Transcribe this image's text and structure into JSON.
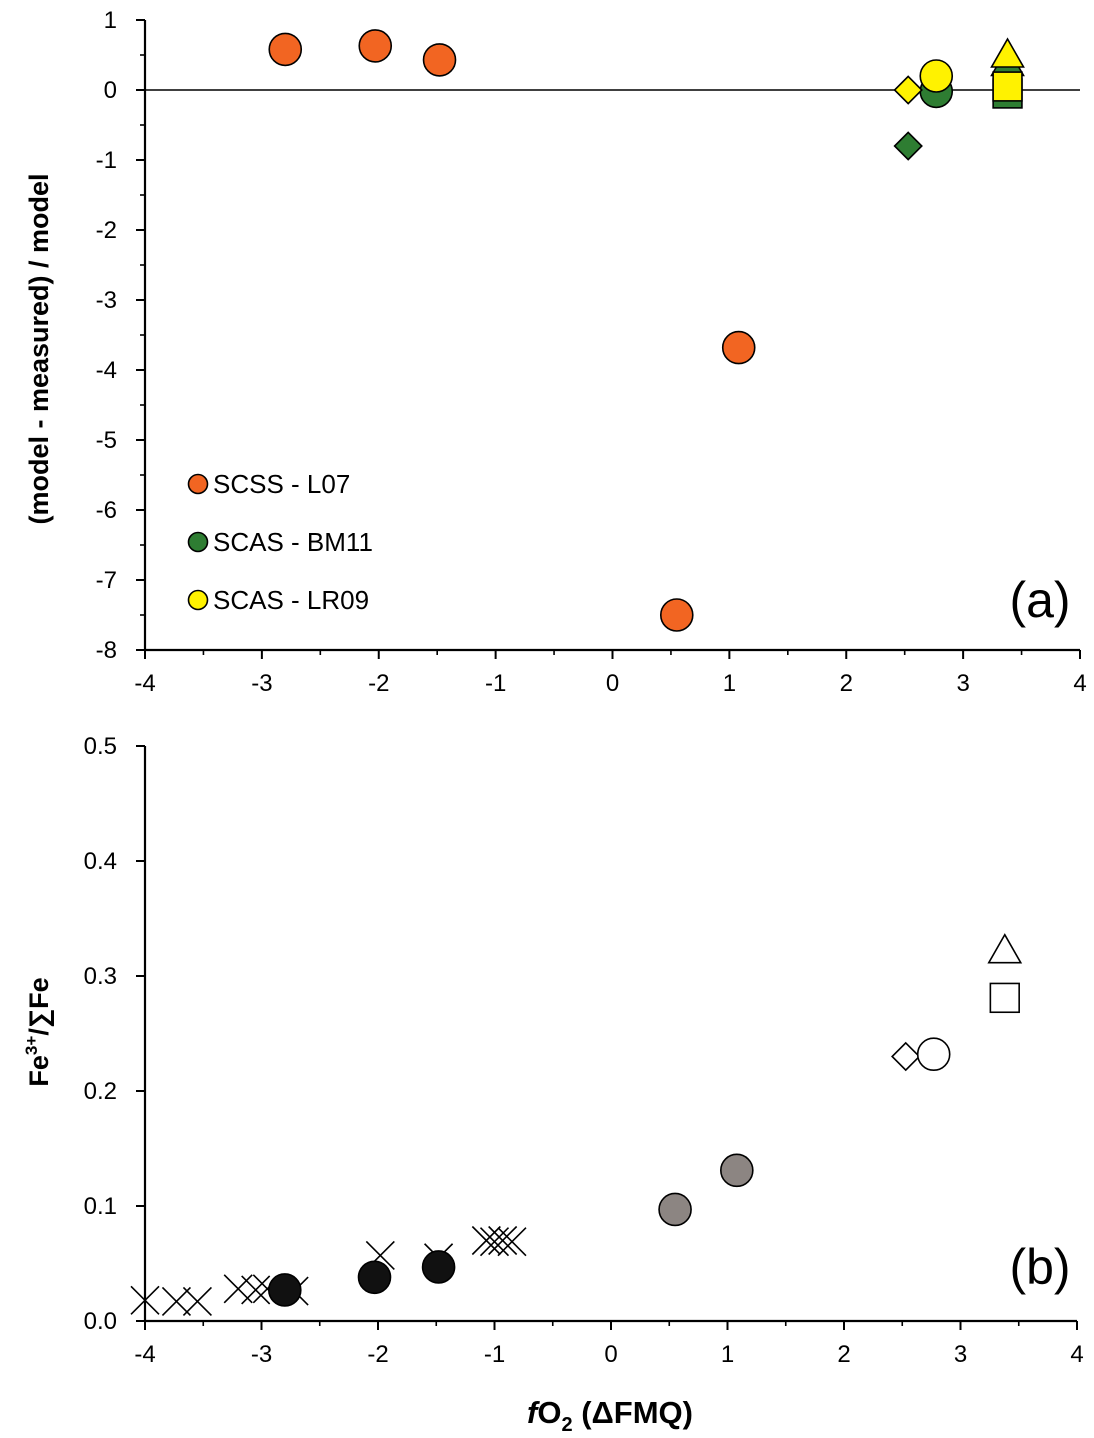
{
  "chart_data": [
    {
      "panel_label": "(a)",
      "type": "scatter",
      "ylabel": "(model - measured) / model",
      "xlim": [
        -4,
        4
      ],
      "ylim": [
        -8,
        1
      ],
      "x_ticks": [
        "-4",
        "-3",
        "-2",
        "-1",
        "0",
        "1",
        "2",
        "3",
        "4"
      ],
      "y_ticks": [
        "1",
        "0",
        "-1",
        "-2",
        "-3",
        "-4",
        "-5",
        "-6",
        "-7",
        "-8"
      ],
      "reference_line_y": 0,
      "legend": [
        {
          "label": "SCSS - L07",
          "color": "#f26522"
        },
        {
          "label": "SCAS - BM11",
          "color": "#2e7d32"
        },
        {
          "label": "SCAS - LR09",
          "color": "#fff200"
        }
      ],
      "series": [
        {
          "name": "SCSS - L07",
          "color": "#f26522",
          "points": [
            {
              "x": -2.8,
              "y": 0.58,
              "marker": "circle"
            },
            {
              "x": -2.03,
              "y": 0.63,
              "marker": "circle"
            },
            {
              "x": -1.48,
              "y": 0.43,
              "marker": "circle"
            },
            {
              "x": 0.55,
              "y": -7.5,
              "marker": "circle"
            },
            {
              "x": 1.08,
              "y": -3.68,
              "marker": "circle"
            }
          ]
        },
        {
          "name": "SCAS - BM11",
          "color": "#2e7d32",
          "points": [
            {
              "x": 2.53,
              "y": -0.8,
              "marker": "diamond"
            },
            {
              "x": 2.77,
              "y": -0.02,
              "marker": "circle"
            },
            {
              "x": 3.38,
              "y": 0.38,
              "marker": "triangle"
            },
            {
              "x": 3.38,
              "y": -0.05,
              "marker": "square"
            }
          ]
        },
        {
          "name": "SCAS - LR09",
          "color": "#fff200",
          "points": [
            {
              "x": 2.53,
              "y": 0.0,
              "marker": "diamond"
            },
            {
              "x": 2.77,
              "y": 0.2,
              "marker": "circle"
            },
            {
              "x": 3.38,
              "y": 0.5,
              "marker": "triangle"
            },
            {
              "x": 3.38,
              "y": 0.05,
              "marker": "square"
            }
          ]
        }
      ]
    },
    {
      "panel_label": "(b)",
      "type": "scatter",
      "xlabel_italic": "f",
      "xlabel_main": "O",
      "xlabel_sub": "2",
      "xlabel_tail": " (ΔFMQ)",
      "ylabel_main": "Fe",
      "ylabel_sup": "3+",
      "ylabel_tail": "/∑Fe",
      "xlim": [
        -4,
        4
      ],
      "ylim": [
        0,
        0.5
      ],
      "x_ticks": [
        "-4",
        "-3",
        "-2",
        "-1",
        "0",
        "1",
        "2",
        "3",
        "4"
      ],
      "y_ticks": [
        "0.5",
        "0.4",
        "0.3",
        "0.2",
        "0.1",
        "0.0"
      ],
      "series": [
        {
          "color": "#000000",
          "points": [
            {
              "x": -4.0,
              "y": 0.018,
              "marker": "x"
            },
            {
              "x": -3.73,
              "y": 0.017,
              "marker": "x"
            },
            {
              "x": -3.55,
              "y": 0.017,
              "marker": "x"
            },
            {
              "x": -3.2,
              "y": 0.028,
              "marker": "x"
            },
            {
              "x": -3.05,
              "y": 0.027,
              "marker": "x"
            },
            {
              "x": -2.95,
              "y": 0.028,
              "marker": "x"
            },
            {
              "x": -2.72,
              "y": 0.026,
              "marker": "x"
            },
            {
              "x": -1.98,
              "y": 0.057,
              "marker": "x"
            },
            {
              "x": -1.48,
              "y": 0.055,
              "marker": "x"
            },
            {
              "x": -1.07,
              "y": 0.07,
              "marker": "x"
            },
            {
              "x": -1.0,
              "y": 0.069,
              "marker": "x"
            },
            {
              "x": -0.93,
              "y": 0.07,
              "marker": "x"
            },
            {
              "x": -0.85,
              "y": 0.069,
              "marker": "x"
            }
          ]
        },
        {
          "color": "#111111",
          "points": [
            {
              "x": -2.8,
              "y": 0.027,
              "marker": "circle"
            },
            {
              "x": -2.03,
              "y": 0.038,
              "marker": "circle"
            },
            {
              "x": -1.48,
              "y": 0.047,
              "marker": "circle"
            }
          ]
        },
        {
          "color": "#8c8582",
          "points": [
            {
              "x": 0.55,
              "y": 0.097,
              "marker": "circle"
            },
            {
              "x": 1.08,
              "y": 0.131,
              "marker": "circle"
            }
          ]
        },
        {
          "color": "#ffffff",
          "points": [
            {
              "x": 2.53,
              "y": 0.23,
              "marker": "diamond"
            },
            {
              "x": 2.77,
              "y": 0.232,
              "marker": "circle"
            },
            {
              "x": 3.38,
              "y": 0.322,
              "marker": "triangle"
            },
            {
              "x": 3.38,
              "y": 0.281,
              "marker": "square"
            }
          ]
        }
      ]
    }
  ]
}
